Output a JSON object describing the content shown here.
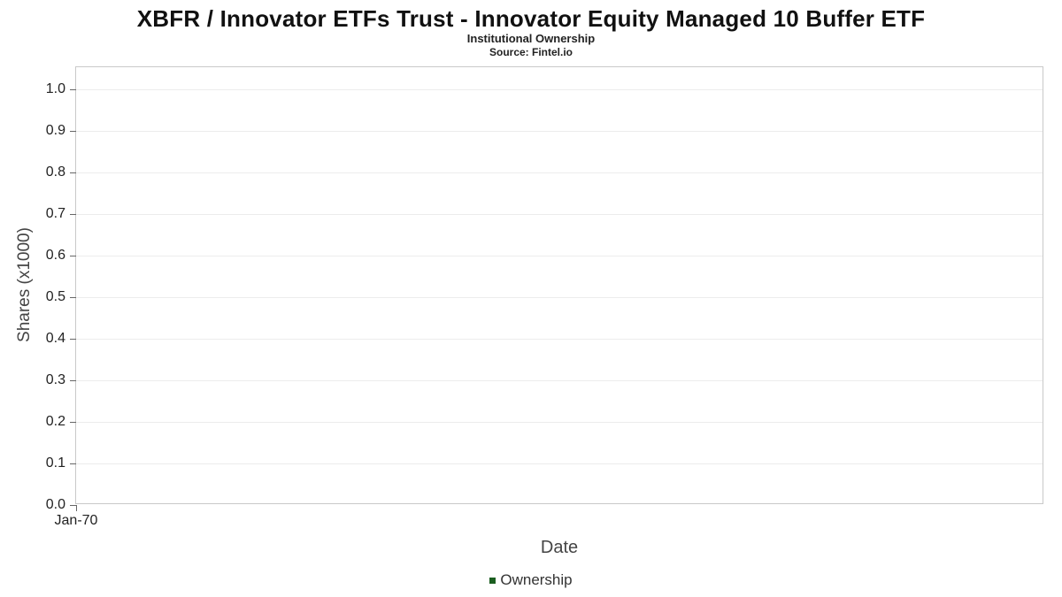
{
  "chart_data": {
    "type": "line",
    "title": "XBFR / Innovator ETFs Trust - Innovator Equity Managed 10 Buffer ETF",
    "subtitle": "Institutional Ownership",
    "source": "Source: Fintel.io",
    "xlabel": "Date",
    "ylabel": "Shares (x1000)",
    "ylim": [
      0.0,
      1.0
    ],
    "ytick_labels": [
      "0.0",
      "0.1",
      "0.2",
      "0.3",
      "0.4",
      "0.5",
      "0.6",
      "0.7",
      "0.8",
      "0.9",
      "1.0"
    ],
    "xtick_labels": [
      "Jan-70"
    ],
    "grid": true,
    "legend_position": "bottom",
    "series": [
      {
        "name": "Ownership",
        "color": "#1b5e20",
        "x": [],
        "values": []
      }
    ],
    "colors": {
      "grid": "#ececec",
      "axis_border": "#c9c9c9",
      "tick": "#666666",
      "text": "#222222"
    },
    "note": "empty plot - no data points rendered"
  }
}
